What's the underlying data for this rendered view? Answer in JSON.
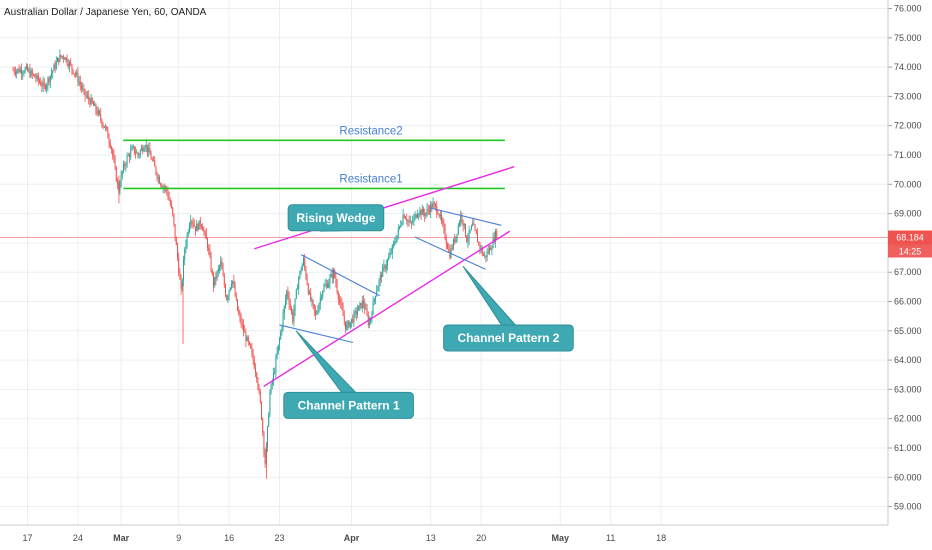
{
  "colors": {
    "background": "#ffffff",
    "grid": "#eceff2",
    "candle_up": "#26a69a",
    "candle_down": "#ef5350",
    "resistance": "#22c522",
    "resistance_label": "#4a7fd6",
    "wedge": "#ea2ae6",
    "channel": "#4a7fd6",
    "price_line": "#f3a5a5",
    "price_badge": "#ef5350",
    "callout_fill": "#3fa9b3",
    "callout_border": "#2e8f98"
  },
  "chart_data": {
    "type": "candlestick",
    "title": "Australian Dollar / Japanese Yen, 60, OANDA",
    "ylim": [
      58.5,
      76.2
    ],
    "y_ticks": [
      "59.000",
      "60.000",
      "61.000",
      "62.000",
      "63.000",
      "64.000",
      "65.000",
      "66.000",
      "67.000",
      "68.000",
      "69.000",
      "70.000",
      "71.000",
      "72.000",
      "73.000",
      "74.000",
      "75.000",
      "76.000"
    ],
    "x_ticks": [
      "17",
      "24",
      "Mar",
      "9",
      "16",
      "23",
      "Apr",
      "13",
      "20",
      "May",
      "11",
      "18"
    ],
    "x_tick_days": [
      0,
      7,
      13,
      21,
      28,
      35,
      45,
      56,
      63,
      74,
      81,
      88
    ],
    "x_range_days": [
      -2,
      104
    ],
    "grid": true,
    "price_path": [
      [
        -2,
        73.9
      ],
      [
        0,
        73.9
      ],
      [
        1.5,
        73.6
      ],
      [
        2.5,
        73.3
      ],
      [
        3.5,
        73.8
      ],
      [
        4.5,
        74.3
      ],
      [
        5.2,
        74.4
      ],
      [
        6,
        74.1
      ],
      [
        7,
        73.7
      ],
      [
        8,
        73.1
      ],
      [
        9,
        72.8
      ],
      [
        10,
        72.4
      ],
      [
        11,
        71.9
      ],
      [
        11.8,
        71.3
      ],
      [
        12.3,
        70.5
      ],
      [
        12.8,
        69.8
      ],
      [
        13.3,
        70.4
      ],
      [
        14,
        70.9
      ],
      [
        14.8,
        71.2
      ],
      [
        15.5,
        71.0
      ],
      [
        16.5,
        71.4
      ],
      [
        17.5,
        70.8
      ],
      [
        18.2,
        70.3
      ],
      [
        18.8,
        70.0
      ],
      [
        19.5,
        69.8
      ],
      [
        20.3,
        69.0
      ],
      [
        21,
        67.5
      ],
      [
        21.5,
        66.3
      ],
      [
        22,
        67.8
      ],
      [
        22.8,
        68.9
      ],
      [
        23.5,
        68.5
      ],
      [
        24.3,
        68.7
      ],
      [
        25.2,
        67.9
      ],
      [
        26,
        66.6
      ],
      [
        27,
        67.3
      ],
      [
        27.8,
        66.1
      ],
      [
        28.6,
        66.8
      ],
      [
        29.4,
        65.6
      ],
      [
        30.3,
        64.9
      ],
      [
        31.2,
        64.3
      ],
      [
        32,
        63.5
      ],
      [
        32.6,
        62.3
      ],
      [
        33.2,
        60.4
      ],
      [
        33.8,
        62.8
      ],
      [
        34.5,
        63.7
      ],
      [
        35.3,
        64.9
      ],
      [
        36.2,
        66.4
      ],
      [
        37,
        65.4
      ],
      [
        37.8,
        66.8
      ],
      [
        38.5,
        67.4
      ],
      [
        39.3,
        66.2
      ],
      [
        40.2,
        65.5
      ],
      [
        41.1,
        66.4
      ],
      [
        41.8,
        66.6
      ],
      [
        42.7,
        67.0
      ],
      [
        43.5,
        66.0
      ],
      [
        44.4,
        65.1
      ],
      [
        45.3,
        65.4
      ],
      [
        46,
        65.7
      ],
      [
        46.8,
        66.0
      ],
      [
        47.6,
        65.2
      ],
      [
        48.5,
        66.3
      ],
      [
        49.4,
        67.0
      ],
      [
        50.4,
        67.5
      ],
      [
        51.4,
        68.2
      ],
      [
        52.4,
        69.0
      ],
      [
        53.4,
        68.6
      ],
      [
        54.4,
        69.1
      ],
      [
        55.4,
        69.0
      ],
      [
        56.4,
        69.3
      ],
      [
        57.2,
        69.1
      ],
      [
        58,
        68.4
      ],
      [
        58.8,
        67.6
      ],
      [
        59.6,
        68.2
      ],
      [
        60.4,
        69.0
      ],
      [
        61.2,
        68.1
      ],
      [
        62,
        68.6
      ],
      [
        62.8,
        68.0
      ],
      [
        63.6,
        67.5
      ],
      [
        64.4,
        67.8
      ],
      [
        65.2,
        68.3
      ]
    ],
    "horizontal_lines": [
      {
        "name": "Resistance2",
        "y": 71.5,
        "x_from": 13.3,
        "x_to": 66.3
      },
      {
        "name": "Resistance1",
        "y": 69.86,
        "x_from": 13.3,
        "x_to": 66.3
      }
    ],
    "trend_lines": [
      {
        "group": "rising-wedge-upper",
        "from": [
          31.5,
          67.8
        ],
        "to": [
          67.6,
          70.6
        ]
      },
      {
        "group": "rising-wedge-lower",
        "from": [
          32.8,
          63.1
        ],
        "to": [
          67.0,
          68.4
        ]
      },
      {
        "group": "channel-1-upper",
        "from": [
          38.0,
          67.6
        ],
        "to": [
          48.9,
          66.2
        ]
      },
      {
        "group": "channel-1-lower",
        "from": [
          35.0,
          65.2
        ],
        "to": [
          45.2,
          64.6
        ]
      },
      {
        "group": "channel-2-upper",
        "from": [
          55.8,
          69.2
        ],
        "to": [
          65.8,
          68.6
        ]
      },
      {
        "group": "channel-2-lower",
        "from": [
          53.8,
          68.2
        ],
        "to": [
          63.6,
          67.1
        ]
      }
    ],
    "annotations": [
      {
        "text": "Rising Wedge",
        "box_day": 36.2,
        "box_price": 69.3,
        "pointer_day": 40.6,
        "pointer_price": 68.4
      },
      {
        "text": "Channel Pattern 1",
        "box_day": 35.6,
        "box_price": 62.9,
        "pointer_day": 37.3,
        "pointer_price": 65.0
      },
      {
        "text": "Channel Pattern 2",
        "box_day": 57.8,
        "box_price": 65.2,
        "pointer_day": 60.5,
        "pointer_price": 67.2
      }
    ],
    "current_price": 68.184,
    "current_price_label": "68.184",
    "countdown_label": "14:25"
  }
}
